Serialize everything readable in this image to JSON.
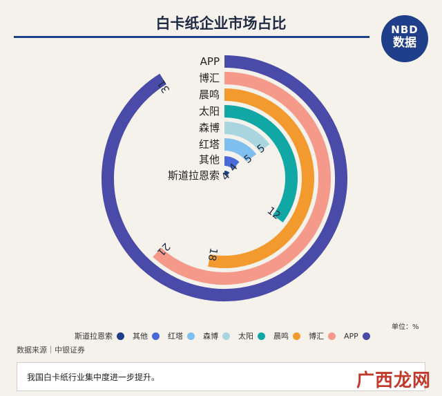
{
  "header": {
    "title": "白卡纸企业市场占比",
    "logo_top": "NBD",
    "logo_bottom": "数据"
  },
  "chart_data": {
    "type": "radial-bar",
    "title": "白卡纸企业市场占比",
    "unit": "单位：%",
    "categories": [
      "APP",
      "博汇",
      "晨鸣",
      "太阳",
      "森博",
      "红塔",
      "其他",
      "斯道拉恩索"
    ],
    "values": [
      31,
      21,
      18,
      12,
      5,
      5,
      4,
      4
    ],
    "colors": [
      "#4a4aa8",
      "#f59a8a",
      "#f29a2e",
      "#11a7a5",
      "#a8d5df",
      "#7fbfef",
      "#4a6ad8",
      "#1f3f8a"
    ],
    "legend": [
      "斯道拉恩索",
      "其他",
      "红塔",
      "森博",
      "太阳",
      "晨鸣",
      "博汇",
      "APP"
    ],
    "legend_placement": "bottom"
  },
  "footer": {
    "source": "数据来源｜中银证券",
    "note": "我国白卡纸行业集中度进一步提升。",
    "watermark": "广西龙网"
  }
}
